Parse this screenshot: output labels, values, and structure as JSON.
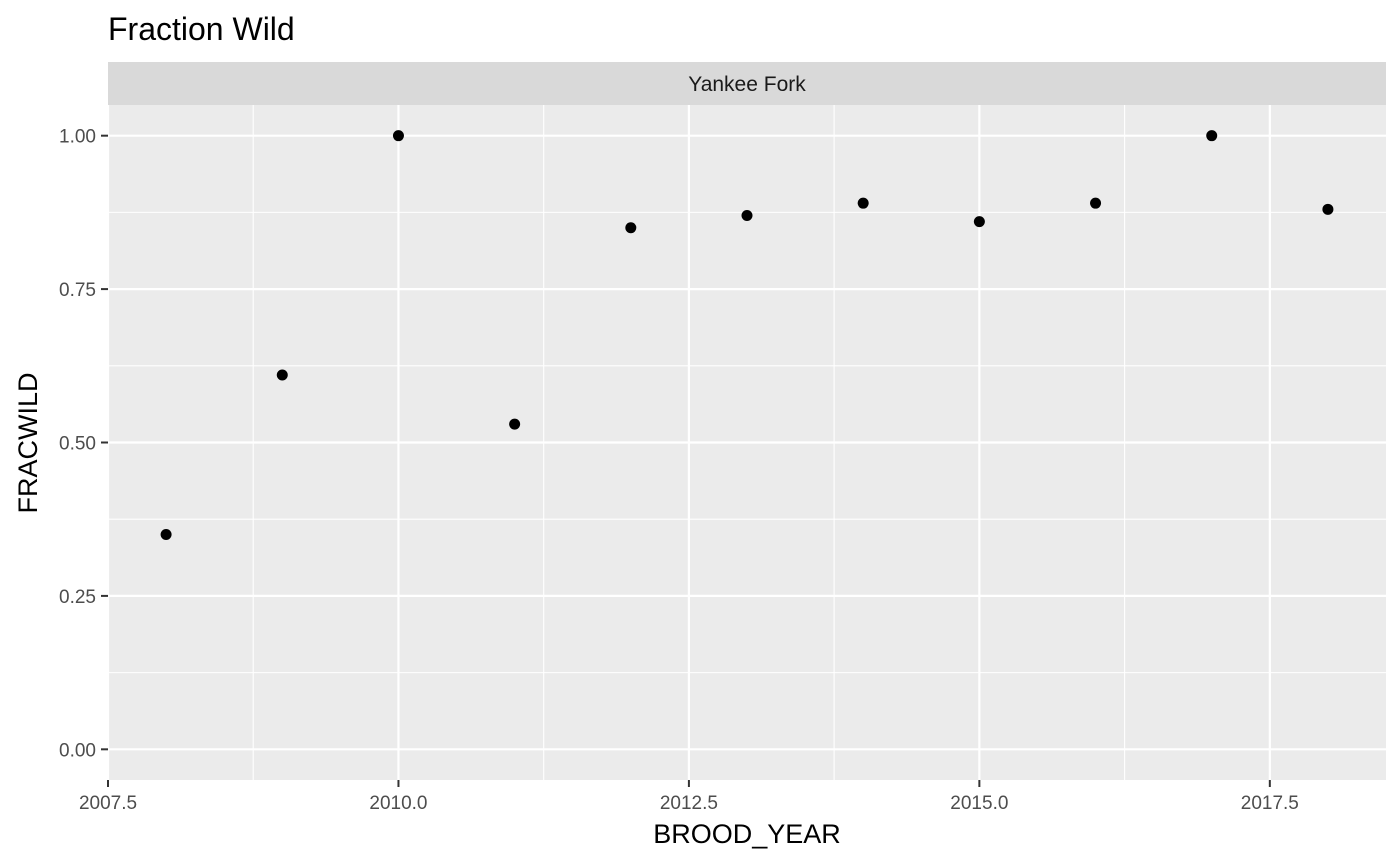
{
  "chart_data": {
    "type": "scatter",
    "title": "Fraction Wild",
    "facet_label": "Yankee Fork",
    "xlabel": "BROOD_YEAR",
    "ylabel": "FRACWILD",
    "xlim": [
      2007.5,
      2018.5
    ],
    "ylim": [
      -0.05,
      1.05
    ],
    "x_ticks": [
      2007.5,
      2010.0,
      2012.5,
      2015.0,
      2017.5
    ],
    "x_tick_labels": [
      "2007.5",
      "2010.0",
      "2012.5",
      "2015.0",
      "2017.5"
    ],
    "y_ticks": [
      0.0,
      0.25,
      0.5,
      0.75,
      1.0
    ],
    "y_tick_labels": [
      "0.00",
      "0.25",
      "0.50",
      "0.75",
      "1.00"
    ],
    "grid": true,
    "points": [
      {
        "x": 2008,
        "y": 0.35
      },
      {
        "x": 2009,
        "y": 0.61
      },
      {
        "x": 2010,
        "y": 1.0
      },
      {
        "x": 2011,
        "y": 0.53
      },
      {
        "x": 2012,
        "y": 0.85
      },
      {
        "x": 2013,
        "y": 0.87
      },
      {
        "x": 2014,
        "y": 0.89
      },
      {
        "x": 2015,
        "y": 0.86
      },
      {
        "x": 2016,
        "y": 0.89
      },
      {
        "x": 2017,
        "y": 1.0
      },
      {
        "x": 2018,
        "y": 0.88
      }
    ],
    "colors": {
      "panel_background": "#ebebeb",
      "strip_background": "#d9d9d9",
      "grid": "#ffffff",
      "point": "#000000"
    }
  }
}
